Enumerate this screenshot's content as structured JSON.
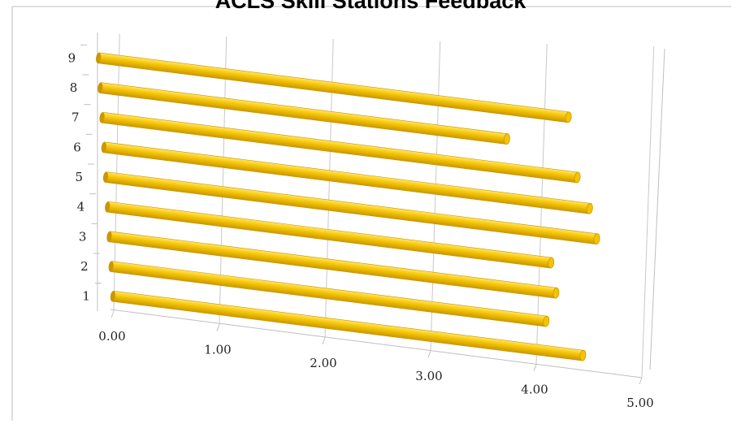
{
  "chart_data": {
    "type": "bar",
    "orientation": "horizontal",
    "style": "3d-cylinder",
    "title": "ACLS Skill Stations Feedback",
    "categories": [
      "1",
      "2",
      "3",
      "4",
      "5",
      "6",
      "7",
      "8",
      "9"
    ],
    "series": [
      {
        "values": [
          4.45,
          4.12,
          4.23,
          4.2,
          4.65,
          4.6,
          4.5,
          3.85,
          4.45
        ]
      }
    ],
    "x_ticks": [
      "0.00",
      "1.00",
      "2.00",
      "3.00",
      "4.00",
      "5.00"
    ],
    "xlim": [
      0,
      5
    ],
    "grid": true,
    "legend": "none",
    "colors": {
      "bar": "#F5C400",
      "bar_dark": "#C99700",
      "bar_light": "#FFE566",
      "grid": "#C8C8C8",
      "frame": "#BFBFBF"
    }
  }
}
